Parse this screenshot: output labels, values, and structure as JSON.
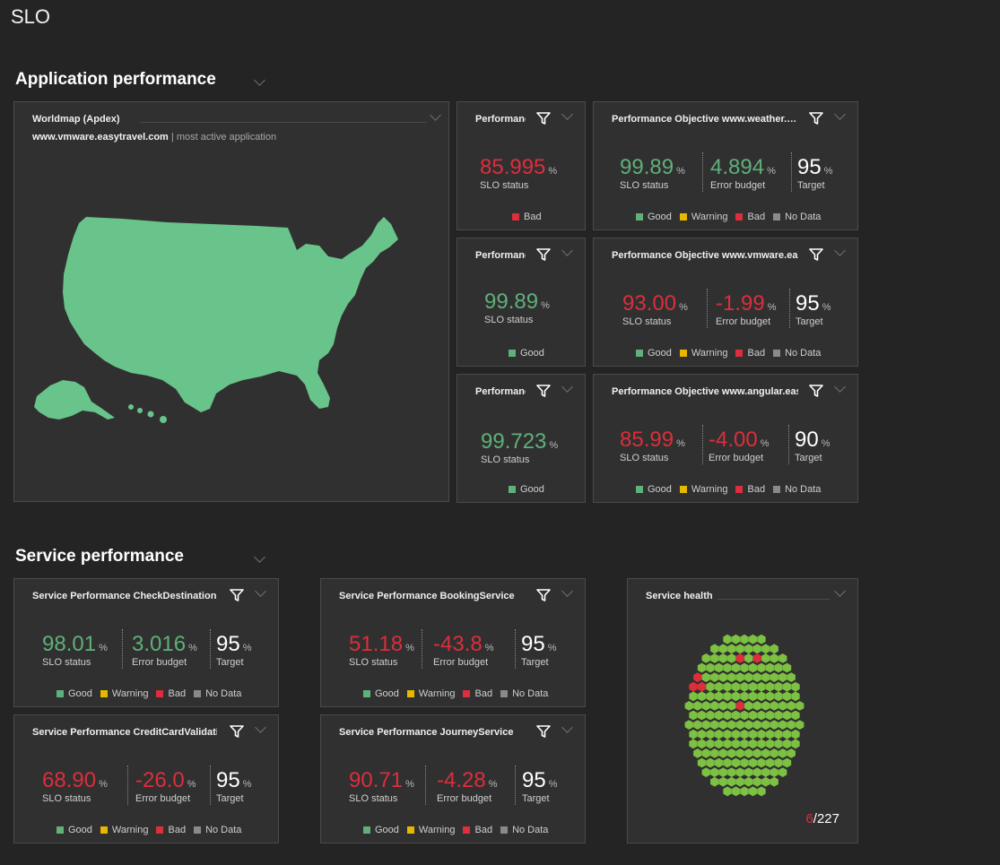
{
  "page": {
    "title": "SLO"
  },
  "sections": {
    "app": "Application performance",
    "service": "Service performance"
  },
  "worldmap": {
    "title": "Worldmap (Apdex)",
    "app_name": "www.vmware.easytravel.com",
    "app_suffix": "| most active application",
    "map_color": "#68c48a"
  },
  "labels": {
    "slo_status": "SLO status",
    "error_budget": "Error budget",
    "target": "Target",
    "percent": "%"
  },
  "legend": {
    "good": "Good",
    "warning": "Warning",
    "bad": "Bad",
    "nodata": "No Data"
  },
  "colors": {
    "good": "#5fb07a",
    "warning": "#e6b800",
    "bad": "#dc2e3c",
    "nodata": "#8a8a8a",
    "hex_ok": "#7cc142"
  },
  "app_small": [
    {
      "title": "Performance Objective",
      "status": "85.995",
      "state": "Bad"
    },
    {
      "title": "Performance Objective",
      "status": "99.89",
      "state": "Good"
    },
    {
      "title": "Performance Objective",
      "status": "99.723",
      "state": "Good"
    }
  ],
  "app_wide": [
    {
      "title": "Performance Objective www.weather.easytravel.com",
      "status": "99.89",
      "budget": "4.894",
      "target": "95"
    },
    {
      "title": "Performance Objective www.vmware.easytravel.com",
      "status": "93.00",
      "budget": "-1.99",
      "target": "95"
    },
    {
      "title": "Performance Objective www.angular.easytravel.com",
      "status": "85.99",
      "budget": "-4.00",
      "target": "90"
    }
  ],
  "services": [
    {
      "title": "Service Performance CheckDestination",
      "status": "98.01",
      "budget": "3.016",
      "target": "95"
    },
    {
      "title": "Service Performance BookingService",
      "status": "51.18",
      "budget": "-43.8",
      "target": "95"
    },
    {
      "title": "Service Performance CreditCardValidation",
      "status": "68.90",
      "budget": "-26.0",
      "target": "95"
    },
    {
      "title": "Service Performance JourneyService",
      "status": "90.71",
      "budget": "-4.28",
      "target": "95"
    }
  ],
  "service_health": {
    "title": "Service health",
    "problems": "6",
    "total": "/227"
  }
}
